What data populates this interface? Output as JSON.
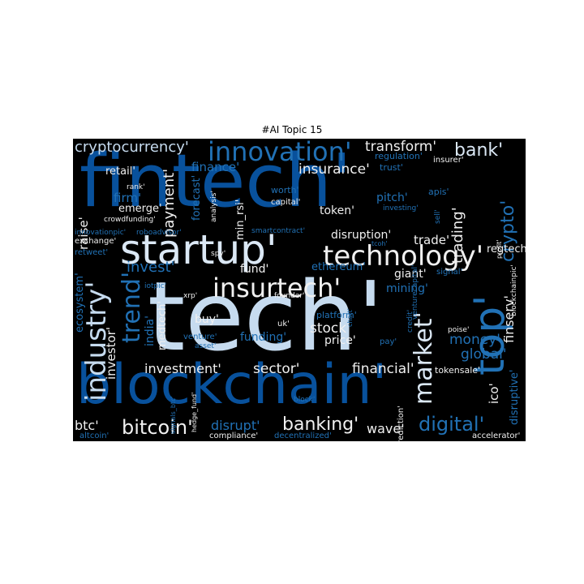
{
  "figure": {
    "title": "#AI Topic 15",
    "background_color": "#000000",
    "palette": [
      "#08306b",
      "#08519c",
      "#2171b5",
      "#4292c6",
      "#6baed6",
      "#9ecae1",
      "#c6dbef",
      "#dbe8f5",
      "#f0f0f0"
    ]
  },
  "words": [
    {
      "text": "tech'",
      "color": "#c6dbef"
    },
    {
      "text": "fintech'",
      "color": "#08519c"
    },
    {
      "text": "blockchain'",
      "color": "#08519c"
    },
    {
      "text": "startup'",
      "color": "#dbe8f5"
    },
    {
      "text": "technology'",
      "color": "#f0f0f0"
    },
    {
      "text": "insurtech'",
      "color": "#f0f0f0"
    },
    {
      "text": "top'",
      "color": "#2171b5"
    },
    {
      "text": "innovation'",
      "color": "#2171b5"
    },
    {
      "text": "industry'",
      "color": "#c6dbef"
    },
    {
      "text": "trend'",
      "color": "#2171b5"
    },
    {
      "text": "market'",
      "color": "#dbe8f5"
    },
    {
      "text": "bitcoin'",
      "color": "#f0f0f0"
    },
    {
      "text": "banking'",
      "color": "#f0f0f0"
    },
    {
      "text": "digital'",
      "color": "#2171b5"
    },
    {
      "text": "cryptocurrency'",
      "color": "#c6dbef"
    },
    {
      "text": "transform'",
      "color": "#f0f0f0"
    },
    {
      "text": "bank'",
      "color": "#dbe8f5"
    },
    {
      "text": "insurance'",
      "color": "#f0f0f0"
    },
    {
      "text": "crypto'",
      "color": "#2171b5"
    },
    {
      "text": "trading'",
      "color": "#f0f0f0"
    },
    {
      "text": "payment'",
      "color": "#f0f0f0"
    },
    {
      "text": "invest'",
      "color": "#2171b5"
    },
    {
      "text": "investment'",
      "color": "#f0f0f0"
    },
    {
      "text": "sector'",
      "color": "#f0f0f0"
    },
    {
      "text": "financial'",
      "color": "#f0f0f0"
    },
    {
      "text": "finance'",
      "color": "#2171b5"
    },
    {
      "text": "stock'",
      "color": "#f0f0f0"
    },
    {
      "text": "fund'",
      "color": "#f0f0f0"
    },
    {
      "text": "trade'",
      "color": "#f0f0f0"
    },
    {
      "text": "disruption'",
      "color": "#f0f0f0"
    },
    {
      "text": "money'",
      "color": "#2171b5"
    },
    {
      "text": "global'",
      "color": "#2171b5"
    },
    {
      "text": "finserv'",
      "color": "#f0f0f0"
    },
    {
      "text": "ico'",
      "color": "#f0f0f0"
    },
    {
      "text": "disrupt'",
      "color": "#2171b5"
    },
    {
      "text": "wave'",
      "color": "#f0f0f0"
    },
    {
      "text": "btc'",
      "color": "#f0f0f0"
    },
    {
      "text": "raise'",
      "color": "#f0f0f0"
    },
    {
      "text": "ecosystem'",
      "color": "#2171b5"
    },
    {
      "text": "investor'",
      "color": "#f0f0f0"
    },
    {
      "text": "india'",
      "color": "#2171b5"
    },
    {
      "text": "medtech'",
      "color": "#f0f0f0"
    },
    {
      "text": "funding'",
      "color": "#2171b5"
    },
    {
      "text": "price'",
      "color": "#f0f0f0"
    },
    {
      "text": "buy'",
      "color": "#f0f0f0"
    },
    {
      "text": "token'",
      "color": "#f0f0f0"
    },
    {
      "text": "ethereum'",
      "color": "#2171b5"
    },
    {
      "text": "giant'",
      "color": "#f0f0f0"
    },
    {
      "text": "mining'",
      "color": "#2171b5"
    },
    {
      "text": "pitch'",
      "color": "#2171b5"
    },
    {
      "text": "regtech'",
      "color": "#f0f0f0"
    },
    {
      "text": "firm'",
      "color": "#2171b5"
    },
    {
      "text": "emerge'",
      "color": "#f0f0f0"
    },
    {
      "text": "retail'",
      "color": "#f0f0f0"
    },
    {
      "text": "forecast'",
      "color": "#2171b5"
    },
    {
      "text": "min_rsi'",
      "color": "#f0f0f0"
    },
    {
      "text": "disruptive'",
      "color": "#2171b5"
    },
    {
      "text": "tokensale'",
      "color": "#f0f0f0"
    },
    {
      "text": "altcoin'",
      "color": "#2171b5"
    },
    {
      "text": "compliance'",
      "color": "#f0f0f0"
    },
    {
      "text": "decentralized'",
      "color": "#2171b5"
    },
    {
      "text": "accelerator'",
      "color": "#f0f0f0"
    },
    {
      "text": "prediction'",
      "color": "#f0f0f0"
    },
    {
      "text": "regulation'",
      "color": "#2171b5"
    },
    {
      "text": "trust'",
      "color": "#2171b5"
    },
    {
      "text": "apis'",
      "color": "#2171b5"
    },
    {
      "text": "insurer'",
      "color": "#f0f0f0"
    },
    {
      "text": "sell'",
      "color": "#2171b5"
    },
    {
      "text": "siliconvalley'",
      "color": "#2171b5"
    },
    {
      "text": "worth'",
      "color": "#2171b5"
    },
    {
      "text": "capital'",
      "color": "#f0f0f0"
    },
    {
      "text": "analysis'",
      "color": "#f0f0f0"
    },
    {
      "text": "investing'",
      "color": "#2171b5"
    },
    {
      "text": "smartcontract'",
      "color": "#2171b5"
    },
    {
      "text": "rank'",
      "color": "#f0f0f0"
    },
    {
      "text": "crowdfunding'",
      "color": "#f0f0f0"
    },
    {
      "text": "innovationpic'",
      "color": "#2171b5"
    },
    {
      "text": "roboadvisor'",
      "color": "#2171b5"
    },
    {
      "text": "exchange'",
      "color": "#f0f0f0"
    },
    {
      "text": "retweet'",
      "color": "#2171b5"
    },
    {
      "text": "spy'",
      "color": "#f0f0f0"
    },
    {
      "text": "founder'",
      "color": "#f0f0f0"
    },
    {
      "text": "xrp'",
      "color": "#f0f0f0"
    },
    {
      "text": "iotpic'",
      "color": "#2171b5"
    },
    {
      "text": "signal'",
      "color": "#2171b5"
    },
    {
      "text": "blockchainpic'",
      "color": "#f0f0f0"
    },
    {
      "text": "profit'",
      "color": "#f0f0f0"
    },
    {
      "text": "platform'",
      "color": "#2171b5"
    },
    {
      "text": "uk'",
      "color": "#f0f0f0"
    },
    {
      "text": "venture'",
      "color": "#2171b5"
    },
    {
      "text": "asset'",
      "color": "#2171b5"
    },
    {
      "text": "pay'",
      "color": "#2171b5"
    },
    {
      "text": "poise'",
      "color": "#f0f0f0"
    },
    {
      "text": "venturecapital'",
      "color": "#2171b5"
    },
    {
      "text": "signals_btc'",
      "color": "#2171b5"
    },
    {
      "text": "hedge_fund'",
      "color": "#f0f0f0"
    },
    {
      "text": "block'",
      "color": "#2171b5"
    },
    {
      "text": "chart'",
      "color": "#2171b5"
    },
    {
      "text": "tcoh'",
      "color": "#2171b5"
    },
    {
      "text": "credit'",
      "color": "#2171b5"
    }
  ]
}
